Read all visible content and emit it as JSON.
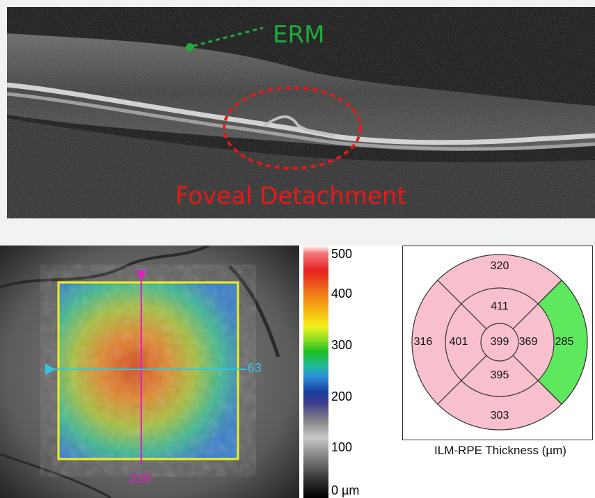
{
  "oct_scan": {
    "erm_label": "ERM",
    "foveal_label": "Foveal Detachment",
    "erm_color": "#1faa3a",
    "foveal_color": "#e81818"
  },
  "thickness_map": {
    "vertical_scan_position": "239",
    "horizontal_scan_position": "63",
    "vertical_line_color": "#e020c0",
    "horizontal_line_color": "#30c8e0",
    "box_color": "#f0f020"
  },
  "color_scale": {
    "labels": [
      "500",
      "400",
      "300",
      "200",
      "100",
      "0 µm"
    ]
  },
  "etdrs_grid": {
    "caption": "ILM-RPE Thickness (µm)",
    "center": "399",
    "inner_superior": "411",
    "inner_inferior": "395",
    "inner_temporal": "401",
    "inner_nasal": "369",
    "outer_superior": "320",
    "outer_inferior": "303",
    "outer_temporal": "316",
    "outer_nasal": "285",
    "pink_color": "#f8c0cc",
    "green_color": "#5ee85e"
  }
}
